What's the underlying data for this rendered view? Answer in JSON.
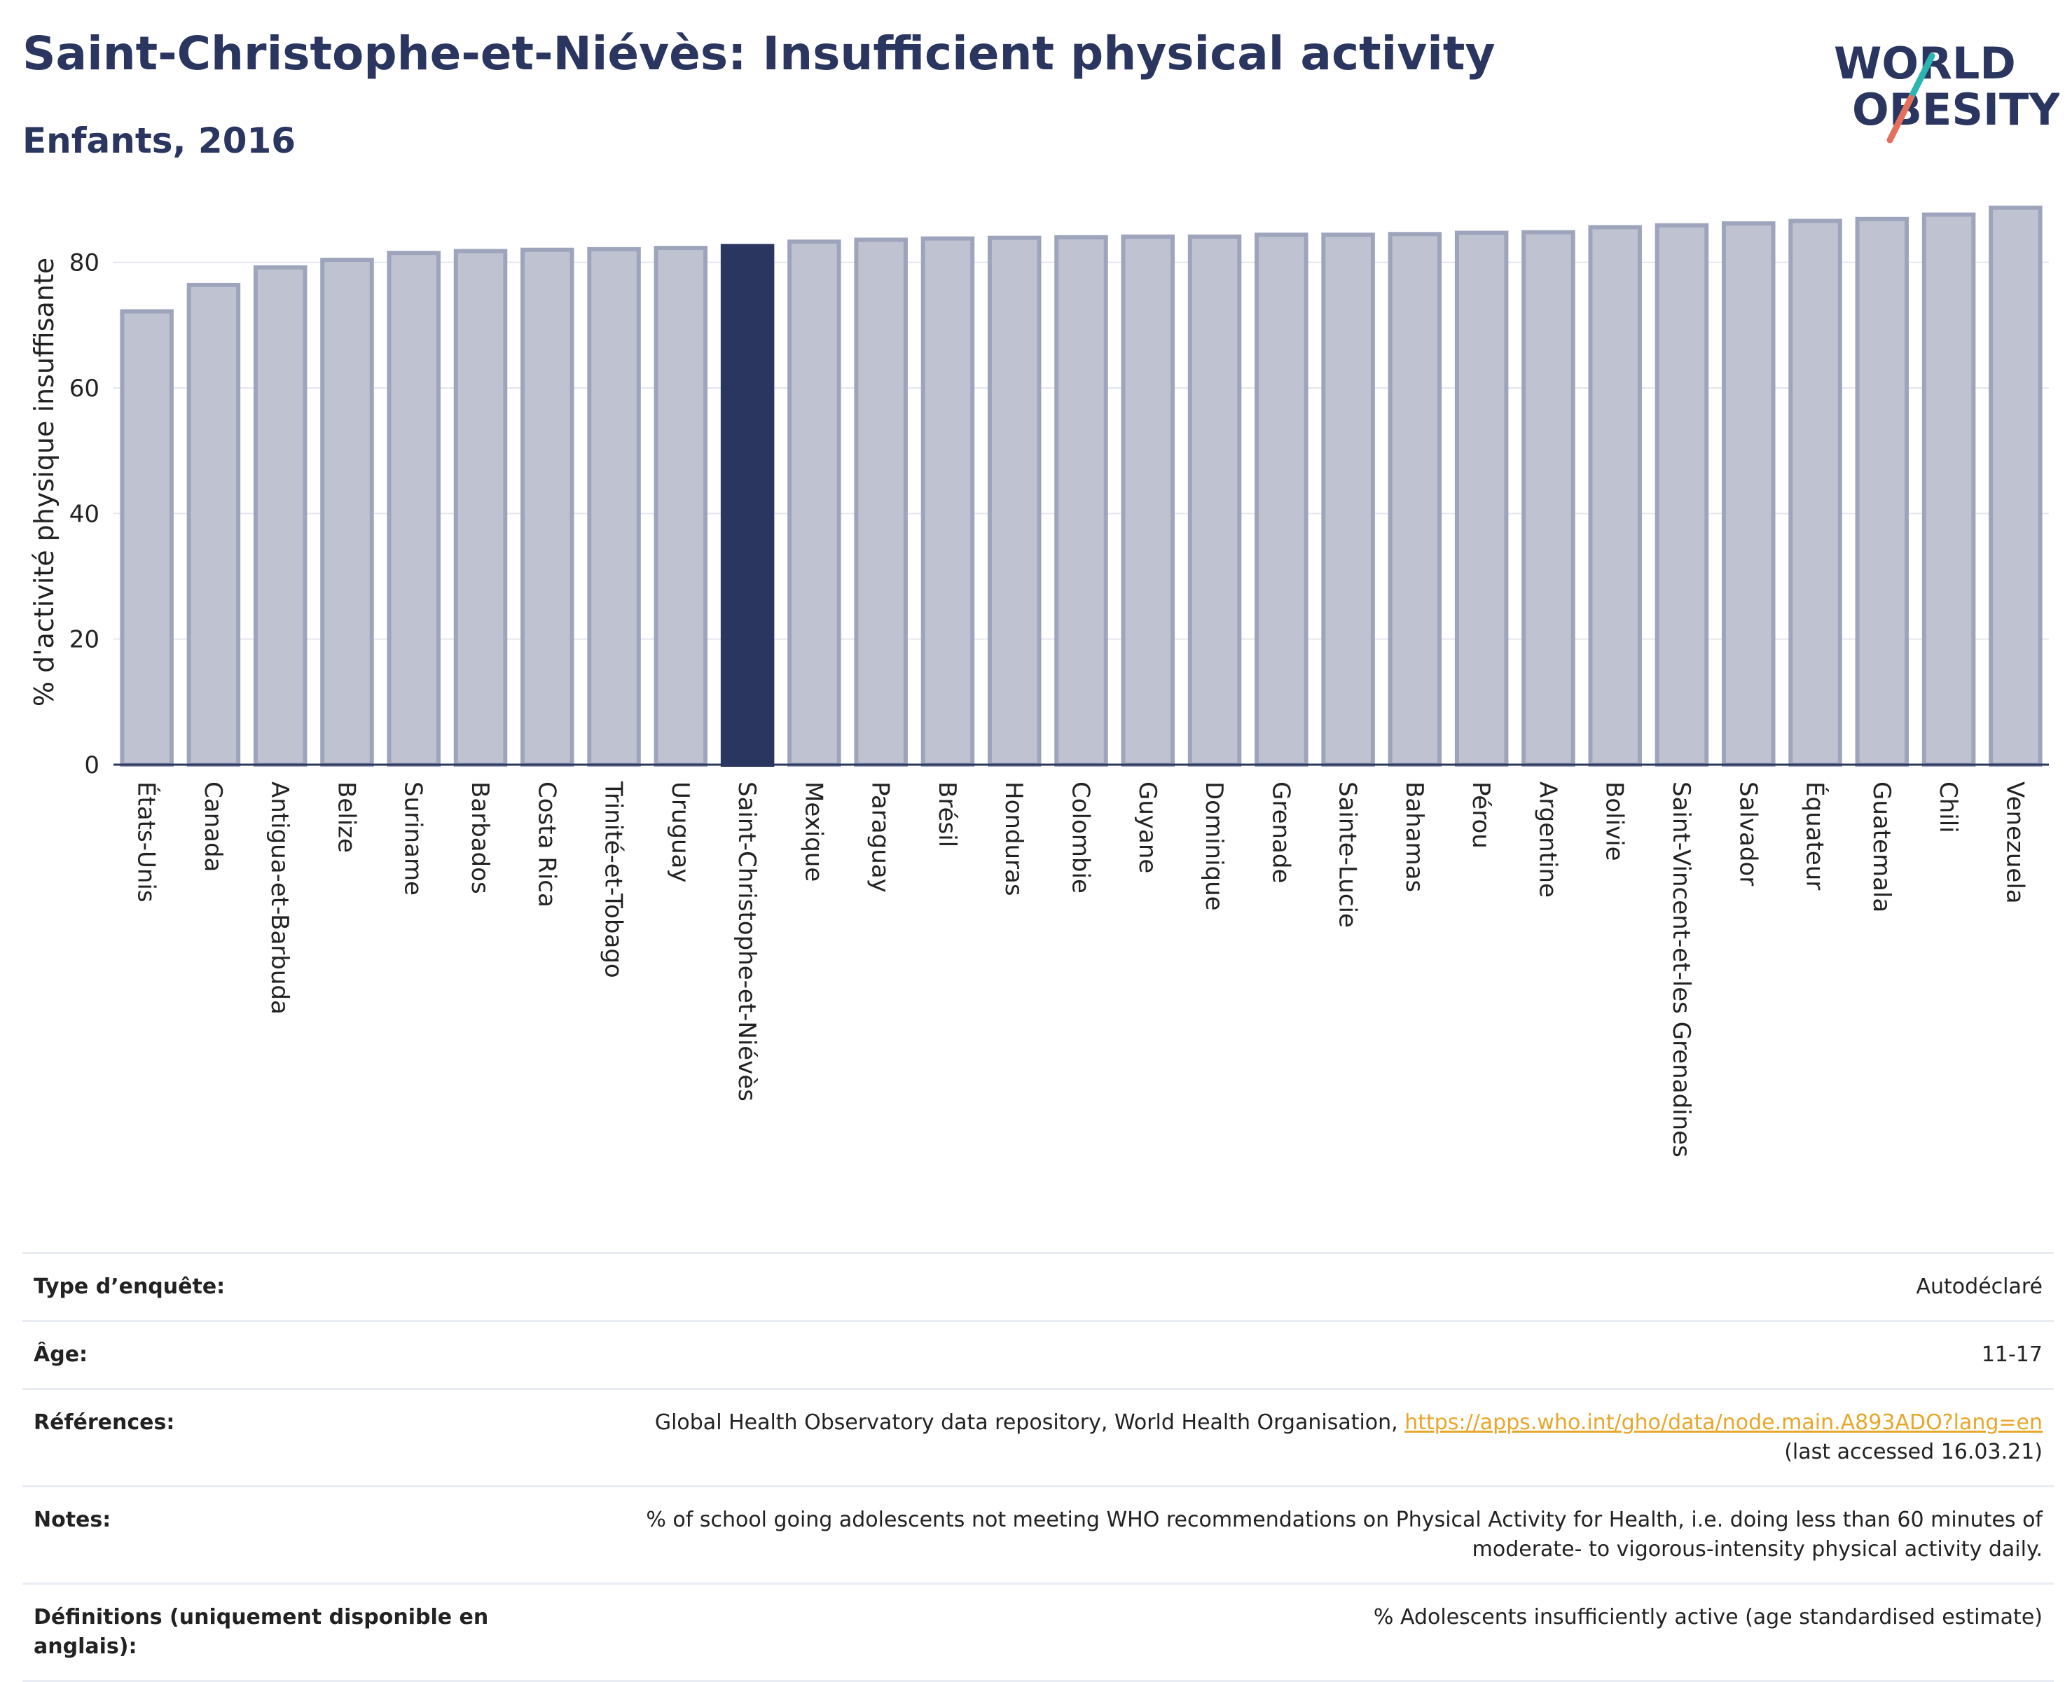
{
  "header": {
    "title": "Saint-Christophe-et-Niévès: Insufficient physical activity",
    "subtitle": "Enfants, 2016"
  },
  "logo": {
    "line1": "WORLD",
    "line2": "OBESITY",
    "accent_teal": "#2bb5b0",
    "accent_red": "#e2705c"
  },
  "colors": {
    "highlight": "#2a3560",
    "bar": "#bfc3d1",
    "bar_edge": "#9ea4bc",
    "text": "#2a3560",
    "link": "#e7a72a"
  },
  "chart_data": {
    "type": "bar",
    "title": "Saint-Christophe-et-Niévès: Insufficient physical activity",
    "subtitle": "Enfants, 2016",
    "xlabel": "",
    "ylabel": "% d'activité physique insuffisante",
    "ylim": [
      0,
      90
    ],
    "yticks": [
      0,
      20,
      40,
      60,
      80
    ],
    "grid": true,
    "highlight": "Saint-Christophe-et-Niévès",
    "categories": [
      "États-Unis",
      "Canada",
      "Antigua-et-Barbuda",
      "Belize",
      "Suriname",
      "Barbados",
      "Costa Rica",
      "Trinité-et-Tobago",
      "Uruguay",
      "Saint-Christophe-et-Niévès",
      "Mexique",
      "Paraguay",
      "Brésil",
      "Honduras",
      "Colombie",
      "Guyane",
      "Dominique",
      "Grenade",
      "Sainte-Lucie",
      "Bahamas",
      "Pérou",
      "Argentine",
      "Bolivie",
      "Saint-Vincent-et-les Grenadines",
      "Salvador",
      "Équateur",
      "Guatemala",
      "Chili",
      "Venezuela"
    ],
    "values": [
      72.2,
      76.4,
      79.2,
      80.4,
      81.5,
      81.8,
      82.0,
      82.1,
      82.3,
      82.6,
      83.3,
      83.6,
      83.8,
      83.9,
      84.0,
      84.1,
      84.1,
      84.4,
      84.4,
      84.5,
      84.7,
      84.8,
      85.6,
      85.9,
      86.2,
      86.6,
      86.9,
      87.6,
      88.7
    ]
  },
  "info": {
    "rows": [
      {
        "label": "Type d’enquête:",
        "value": "Autodéclaré"
      },
      {
        "label": "Âge:",
        "value": "11-17"
      },
      {
        "label": "Références:",
        "value": "Global Health Observatory data repository, World Health Organisation,",
        "link": "https://apps.who.int/gho/data/node.main.A893ADO?lang=en",
        "value2": "(last accessed 16.03.21)"
      },
      {
        "label": "Notes:",
        "value": "% of school going adolescents not meeting WHO recommendations on Physical Activity for Health, i.e. doing less than 60 minutes of moderate- to vigorous-intensity physical activity daily."
      },
      {
        "label": "Définitions (uniquement disponible en anglais):",
        "value": "% Adolescents insufficiently active (age standardised estimate)"
      }
    ]
  }
}
